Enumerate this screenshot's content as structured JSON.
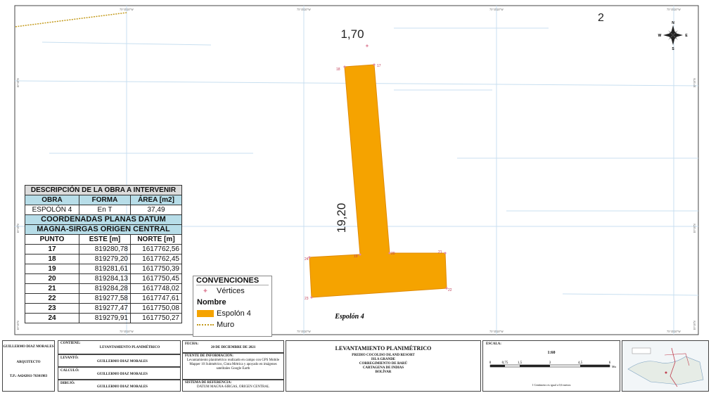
{
  "map": {
    "top_tick_labels": [
      "75°35'20\"W",
      "75°35'20\"W",
      "75°35'20\"W",
      "75°35'20\"W"
    ],
    "bottom_tick_labels": [
      "75°35'20\"W",
      "75°35'20\"W",
      "75°35'20\"W",
      "75°35'20\"W"
    ],
    "left_tick_labels": [
      "10°10'N",
      "10°10'N",
      "10°10'N"
    ],
    "right_tick_labels": [
      "10°10'N",
      "10°10'N",
      "10°10'N"
    ],
    "dim_top": "1,70",
    "dim_side": "19,20",
    "feature_label": "Espolón 4",
    "corner_fragment": "2",
    "vertex_labels": [
      "17",
      "18",
      "19",
      "20",
      "21",
      "22",
      "23",
      "24"
    ],
    "compass": {
      "n": "N",
      "s": "S",
      "e": "E",
      "w": "W"
    },
    "colors": {
      "espolon": "#f5a300",
      "vertex": "#e08aa0",
      "muro": "#c39a1c",
      "grid": "#c8dff0"
    }
  },
  "table": {
    "title": "DESCRIPCIÓN DE LA OBRA A INTERVENIR",
    "headers": [
      "OBRA",
      "FORMA",
      "ÁREA [m2]"
    ],
    "obra_row": [
      "ESPOLÓN 4",
      "En T",
      "37,49"
    ],
    "coord_title_1": "COORDENADAS PLANAS DATUM",
    "coord_title_2": "MAGNA-SIRGAS ORIGEN CENTRAL",
    "coord_headers": [
      "PUNTO",
      "ESTE [m]",
      "NORTE [m]"
    ],
    "rows": [
      [
        "17",
        "819280,78",
        "1617762,56"
      ],
      [
        "18",
        "819279,20",
        "1617762,45"
      ],
      [
        "19",
        "819281,61",
        "1617750,39"
      ],
      [
        "20",
        "819284,13",
        "1617750,45"
      ],
      [
        "21",
        "819284,28",
        "1617748,02"
      ],
      [
        "22",
        "819277,58",
        "1617747,61"
      ],
      [
        "23",
        "819277,47",
        "1617750,08"
      ],
      [
        "24",
        "819279,91",
        "1617750,27"
      ]
    ]
  },
  "legend": {
    "title": "CONVENCIONES",
    "vertices": "Vértices",
    "nombre": "Nombre",
    "espolon": "Espolón 4",
    "muro": "Muro"
  },
  "titleblock": {
    "author": "GUILLERMO DIAZ MORALES",
    "role": "ARQUITECTO",
    "tp": "T.P.: A4242011-76301983",
    "contiene_label": "CONTIENE:",
    "contiene_value": "LEVANTAMIENTO PLANIMÉTRICO",
    "levanto_label": "LEVANTÓ:",
    "levanto_value": "GUILLERMO DIAZ MORALES",
    "calculo_label": "CALCULÓ:",
    "calculo_value": "GUILLERMO DIAZ MORALES",
    "dibujo_label": "DIBUJÓ:",
    "dibujo_value": "GUILLERMO DIAZ MORALES",
    "fecha_label": "FECHA:",
    "fecha_value": "20 DE DICIEMBRE DE 2021",
    "fuente_label": "FUENTE DE INFORMACIÓN:",
    "fuente_value": "Levantamiento planimétrico realizado en campo con GPS Mobile Mapper 10 Submétrico, Cinta Métrica y apoyado en imágenes satelitales Google Earth",
    "sistema_label": "SISTEMA DE REFERENCIA:",
    "sistema_value": "DATUM MAGNA-SIRGAS, ORIGEN CENTRAL",
    "main_title": "LEVANTAMIENTO PLANIMÉTRICO",
    "predio": "PREDIO COCOLISO ISLAND RESORT",
    "isla": "ISLA GRANDE",
    "corregimiento": "CORREGIMIENTO DE BARÚ",
    "cartagena": "CARTAGENA DE INDIAS",
    "bolivar": "BOLÍVAR",
    "escala_label": "ESCALA:",
    "escala_value": "1:60",
    "scale_ticks": [
      "0",
      "0,75",
      "1,5",
      "3",
      "4,5",
      "6"
    ],
    "scale_unit": "Mts",
    "scale_note": "1 Centímetro es igual a 0,6 metros"
  }
}
